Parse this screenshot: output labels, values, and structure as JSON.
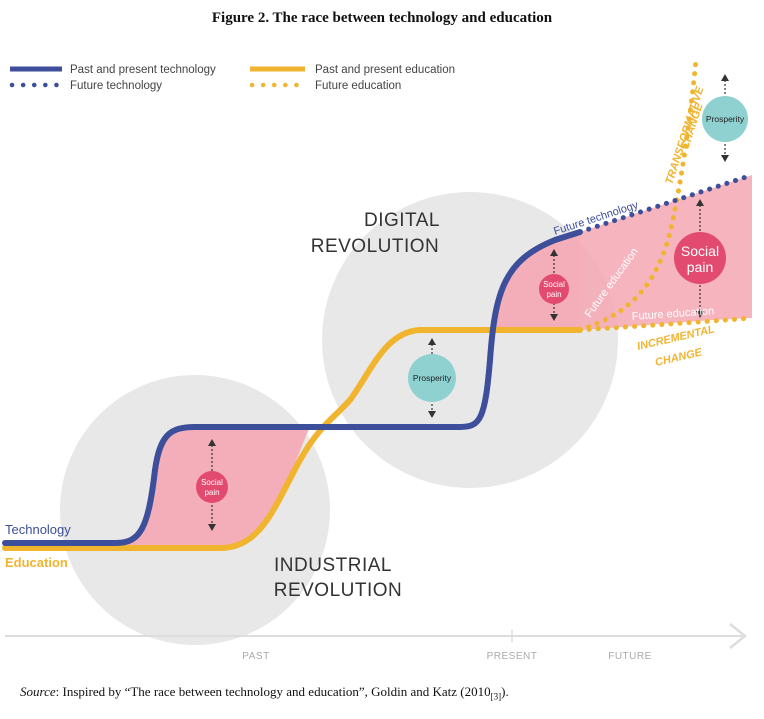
{
  "title": "Figure 2. The race between technology and education",
  "source": {
    "label": "Source",
    "text": ": Inspired by “The race between technology and education”, Goldin and Katz (2010",
    "ref": "[3]",
    "suffix": ")."
  },
  "colors": {
    "technology": "#3d4e9a",
    "education": "#f1b42f",
    "social_pain": "#e34a6f",
    "social_pain_fill": "#f4a7b4",
    "prosperity": "#8ed1d0",
    "revolution_bg": "#e6e6e6"
  },
  "legend": {
    "past_technology": "Past and present technology",
    "future_technology": "Future technology",
    "past_education": "Past and present education",
    "future_education": "Future education"
  },
  "labels": {
    "digital_revolution_line1": "DIGITAL",
    "digital_revolution_line2": "REVOLUTION",
    "industrial_revolution_line1": "INDUSTRIAL",
    "industrial_revolution_line2": "REVOLUTION",
    "technology": "Technology",
    "education": "Education",
    "social_pain_line1": "Social",
    "social_pain_line2": "pain",
    "prosperity": "Prosperity",
    "future_technology": "Future technology",
    "future_education": "Future education",
    "transformative_line1": "TRANSFORMATIVE",
    "transformative_line2": "CHANGE",
    "incremental_line1": "INCREMENTAL",
    "incremental_line2": "CHANGE"
  },
  "axis": {
    "past": "PAST",
    "present": "PRESENT",
    "future": "FUTURE"
  }
}
